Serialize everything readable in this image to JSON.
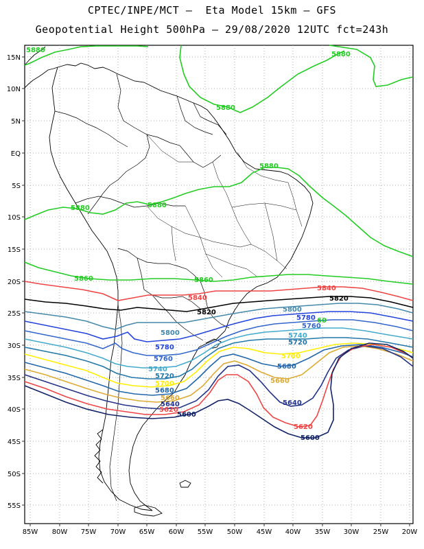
{
  "title_line1": "CPTEC/INPE/MCT —  Eta Model 15km — GFS",
  "title_line2": "Geopotential Height 500hPa — 29/08/2020 12UTC fct=243h",
  "lat_labels": [
    "15N",
    "10N",
    "5N",
    "EQ",
    "5S",
    "10S",
    "15S",
    "20S",
    "25S",
    "30S",
    "35S",
    "40S",
    "45S",
    "50S",
    "55S"
  ],
  "lon_labels": [
    "85W",
    "80W",
    "75W",
    "70W",
    "65W",
    "60W",
    "55W",
    "50W",
    "45W",
    "40W",
    "35W",
    "30W",
    "25W",
    "20W"
  ],
  "contour_colors": {
    "5880": "#22cc22",
    "5860": "#22cc22",
    "5840": "#ee4444",
    "5820": "#000000",
    "5800": "#4488aa",
    "5780": "#2244dd",
    "5760": "#3366cc",
    "5740": "#44aacc",
    "5720": "#2277aa",
    "5700": "#ffee00",
    "5680": "#2266aa",
    "5660": "#ddaa33",
    "5640": "#223388",
    "5620": "#ee4444",
    "5600": "#112266"
  },
  "contour_labels": [
    {
      "text": "5880",
      "color_key": "5880"
    },
    {
      "text": "5880",
      "color_key": "5880"
    },
    {
      "text": "5880",
      "color_key": "5880"
    },
    {
      "text": "5880",
      "color_key": "5880"
    },
    {
      "text": "5880",
      "color_key": "5880"
    },
    {
      "text": "5880",
      "color_key": "5880"
    },
    {
      "text": "5860",
      "color_key": "5860"
    },
    {
      "text": "5860",
      "color_key": "5860"
    },
    {
      "text": "5840",
      "color_key": "5840"
    },
    {
      "text": "5840",
      "color_key": "5840"
    },
    {
      "text": "5820",
      "color_key": "5820"
    },
    {
      "text": "5820",
      "color_key": "5820"
    },
    {
      "text": "5800",
      "color_key": "5800"
    },
    {
      "text": "5800",
      "color_key": "5800"
    },
    {
      "text": "5780",
      "color_key": "5780"
    },
    {
      "text": "5780",
      "color_key": "5780"
    },
    {
      "text": "5760",
      "color_key": "5760"
    },
    {
      "text": "5760",
      "color_key": "5760"
    },
    {
      "text": "5740",
      "color_key": "5740"
    },
    {
      "text": "5740",
      "color_key": "5740"
    },
    {
      "text": "5720",
      "color_key": "5720"
    },
    {
      "text": "5720",
      "color_key": "5720"
    },
    {
      "text": "5700",
      "color_key": "5700"
    },
    {
      "text": "5700",
      "color_key": "5700"
    },
    {
      "text": "5680",
      "color_key": "5680"
    },
    {
      "text": "5680",
      "color_key": "5680"
    },
    {
      "text": "5660",
      "color_key": "5660"
    },
    {
      "text": "5660",
      "color_key": "5660"
    },
    {
      "text": "5640",
      "color_key": "5640"
    },
    {
      "text": "5640",
      "color_key": "5640"
    },
    {
      "text": "5620",
      "color_key": "5620"
    },
    {
      "text": "5620",
      "color_key": "5620"
    },
    {
      "text": "5600",
      "color_key": "5600"
    },
    {
      "text": "5600",
      "color_key": "5600"
    },
    {
      "text": "60",
      "color_key": "5880"
    }
  ]
}
